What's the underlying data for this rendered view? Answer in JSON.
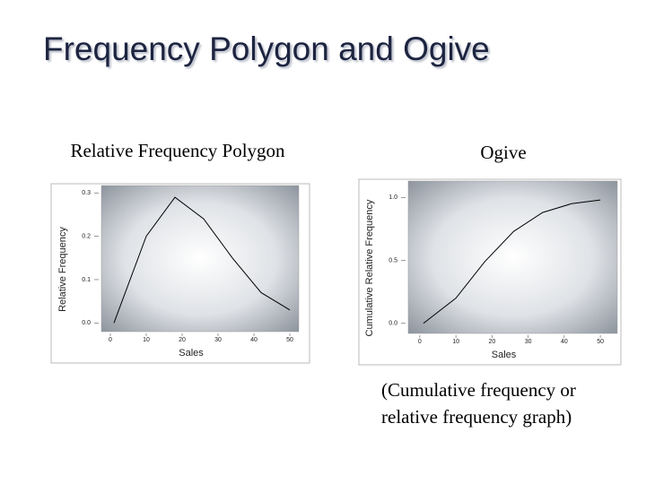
{
  "title": "Frequency Polygon and Ogive",
  "chart_data": [
    {
      "type": "line",
      "title": "Relative Frequency Polygon",
      "x_label": "Sales",
      "y_label": "Relative Frequency",
      "x": [
        1,
        10,
        18,
        26,
        34,
        42,
        50
      ],
      "values": [
        0,
        0.2,
        0.29,
        0.24,
        0.15,
        0.07,
        0.03
      ],
      "color": "#000000",
      "xlim": [
        -2.5,
        52.5
      ],
      "ylim": [
        -0.02,
        0.317
      ],
      "xticks": [
        0,
        10,
        20,
        30,
        40,
        50
      ],
      "yticks": [
        {
          "value": 0,
          "label": "0.0"
        },
        0.1,
        0.2,
        0.3
      ]
    },
    {
      "type": "line",
      "title": "Ogive",
      "x_label": "Sales",
      "y_label": "Cumulative Relative Frequency",
      "x": [
        1,
        10,
        18,
        26,
        34,
        42,
        50
      ],
      "values": [
        0,
        0.2,
        0.49,
        0.73,
        0.88,
        0.95,
        0.98
      ],
      "color": "#000000",
      "xlim": [
        -3.2,
        54.7
      ],
      "ylim": [
        -0.08,
        1.13
      ],
      "xticks": [
        0,
        10,
        20,
        30,
        40,
        50
      ],
      "yticks": [
        {
          "value": 0,
          "label": "0.0"
        },
        0.5,
        {
          "value": 1,
          "label": "1.0"
        }
      ]
    }
  ],
  "caption": "(Cumulative frequency or relative frequency graph)"
}
